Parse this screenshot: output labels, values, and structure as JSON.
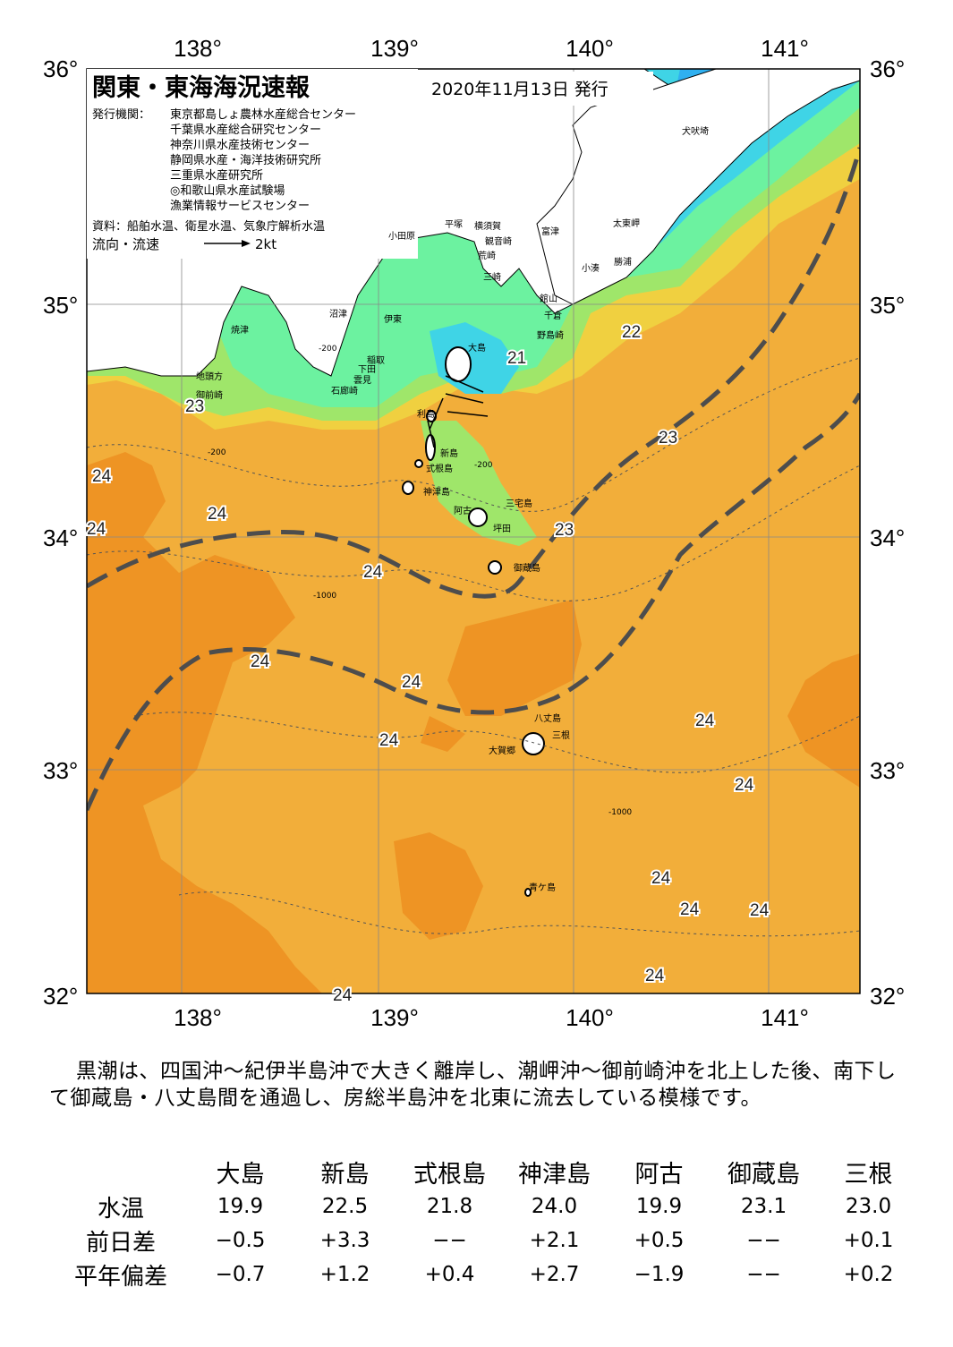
{
  "map": {
    "title": "関東・東海海況速報",
    "issue_date": "2020年11月13日 発行",
    "publisher_label": "発行機関：",
    "publishers": [
      "東京都島しょ農林水産総合センター",
      "千葉県水産総合研究センター",
      "神奈川県水産技術センター",
      "静岡県水産・海洋技術研究所",
      "三重県水産研究所",
      "◎和歌山県水産試験場",
      "漁業情報サービスセンター"
    ],
    "source_note": "資料：船舶水温、衛星水温、気象庁解析水温",
    "flow_legend_label": "流向・流速",
    "flow_legend_scale": "2kt",
    "lon_labels": [
      "138°",
      "139°",
      "140°",
      "141°"
    ],
    "lat_labels": [
      "36°",
      "35°",
      "34°",
      "33°",
      "32°"
    ],
    "place_names": [
      "犬吠埼",
      "太東岬",
      "勝浦",
      "小湊",
      "富津",
      "館山",
      "千倉",
      "野島崎",
      "横須賀",
      "観音崎",
      "荒崎",
      "三崎",
      "平塚",
      "小田原",
      "沼津",
      "伊東",
      "焼津",
      "稲取",
      "下田",
      "雲見",
      "石廊崎",
      "地頭方",
      "御前崎",
      "大島",
      "利島",
      "新島",
      "式根島",
      "神津島",
      "三宅島",
      "阿古",
      "坪田",
      "御蔵島",
      "八丈島",
      "三根",
      "大賀郷",
      "青ケ島"
    ],
    "isotherm_labels": [
      {
        "text": "21"
      },
      {
        "text": "22"
      },
      {
        "text": "23"
      },
      {
        "text": "23"
      },
      {
        "text": "23"
      },
      {
        "text": "24"
      },
      {
        "text": "24"
      },
      {
        "text": "24"
      },
      {
        "text": "24"
      },
      {
        "text": "24"
      },
      {
        "text": "24"
      },
      {
        "text": "24"
      },
      {
        "text": "24"
      },
      {
        "text": "24"
      },
      {
        "text": "24"
      },
      {
        "text": "24"
      },
      {
        "text": "24"
      },
      {
        "text": "24"
      },
      {
        "text": "24"
      }
    ],
    "depth_labels": [
      "-200",
      "-1000"
    ],
    "colors": {
      "kuroshio_axis": "#4d4d4d",
      "t19": "#2fb0f0",
      "t20": "#3fd4e6",
      "t21": "#6cf2a0",
      "t22": "#9fe66a",
      "t23": "#f0d040",
      "t24": "#f2ae3a",
      "t25": "#ee9424",
      "land": "#ffffff"
    }
  },
  "summary": "黒潮は、四国沖～紀伊半島沖で大きく離岸し、潮岬沖～御前崎沖を北上した後、南下して御蔵島・八丈島間を通過し、房総半島沖を北東に流去している模様です。",
  "table": {
    "stations": [
      "大島",
      "新島",
      "式根島",
      "神津島",
      "阿古",
      "御蔵島",
      "三根"
    ],
    "rows": [
      {
        "label": "水温",
        "values": [
          "19.9",
          "22.5",
          "21.8",
          "24.0",
          "19.9",
          "23.1",
          "23.0"
        ]
      },
      {
        "label": "前日差",
        "values": [
          "−0.5",
          "+3.3",
          "−−",
          "+2.1",
          "+0.5",
          "−−",
          "+0.1"
        ]
      },
      {
        "label": "平年偏差",
        "values": [
          "−0.7",
          "+1.2",
          "+0.4",
          "+2.7",
          "−1.9",
          "−−",
          "+0.2"
        ]
      }
    ]
  }
}
